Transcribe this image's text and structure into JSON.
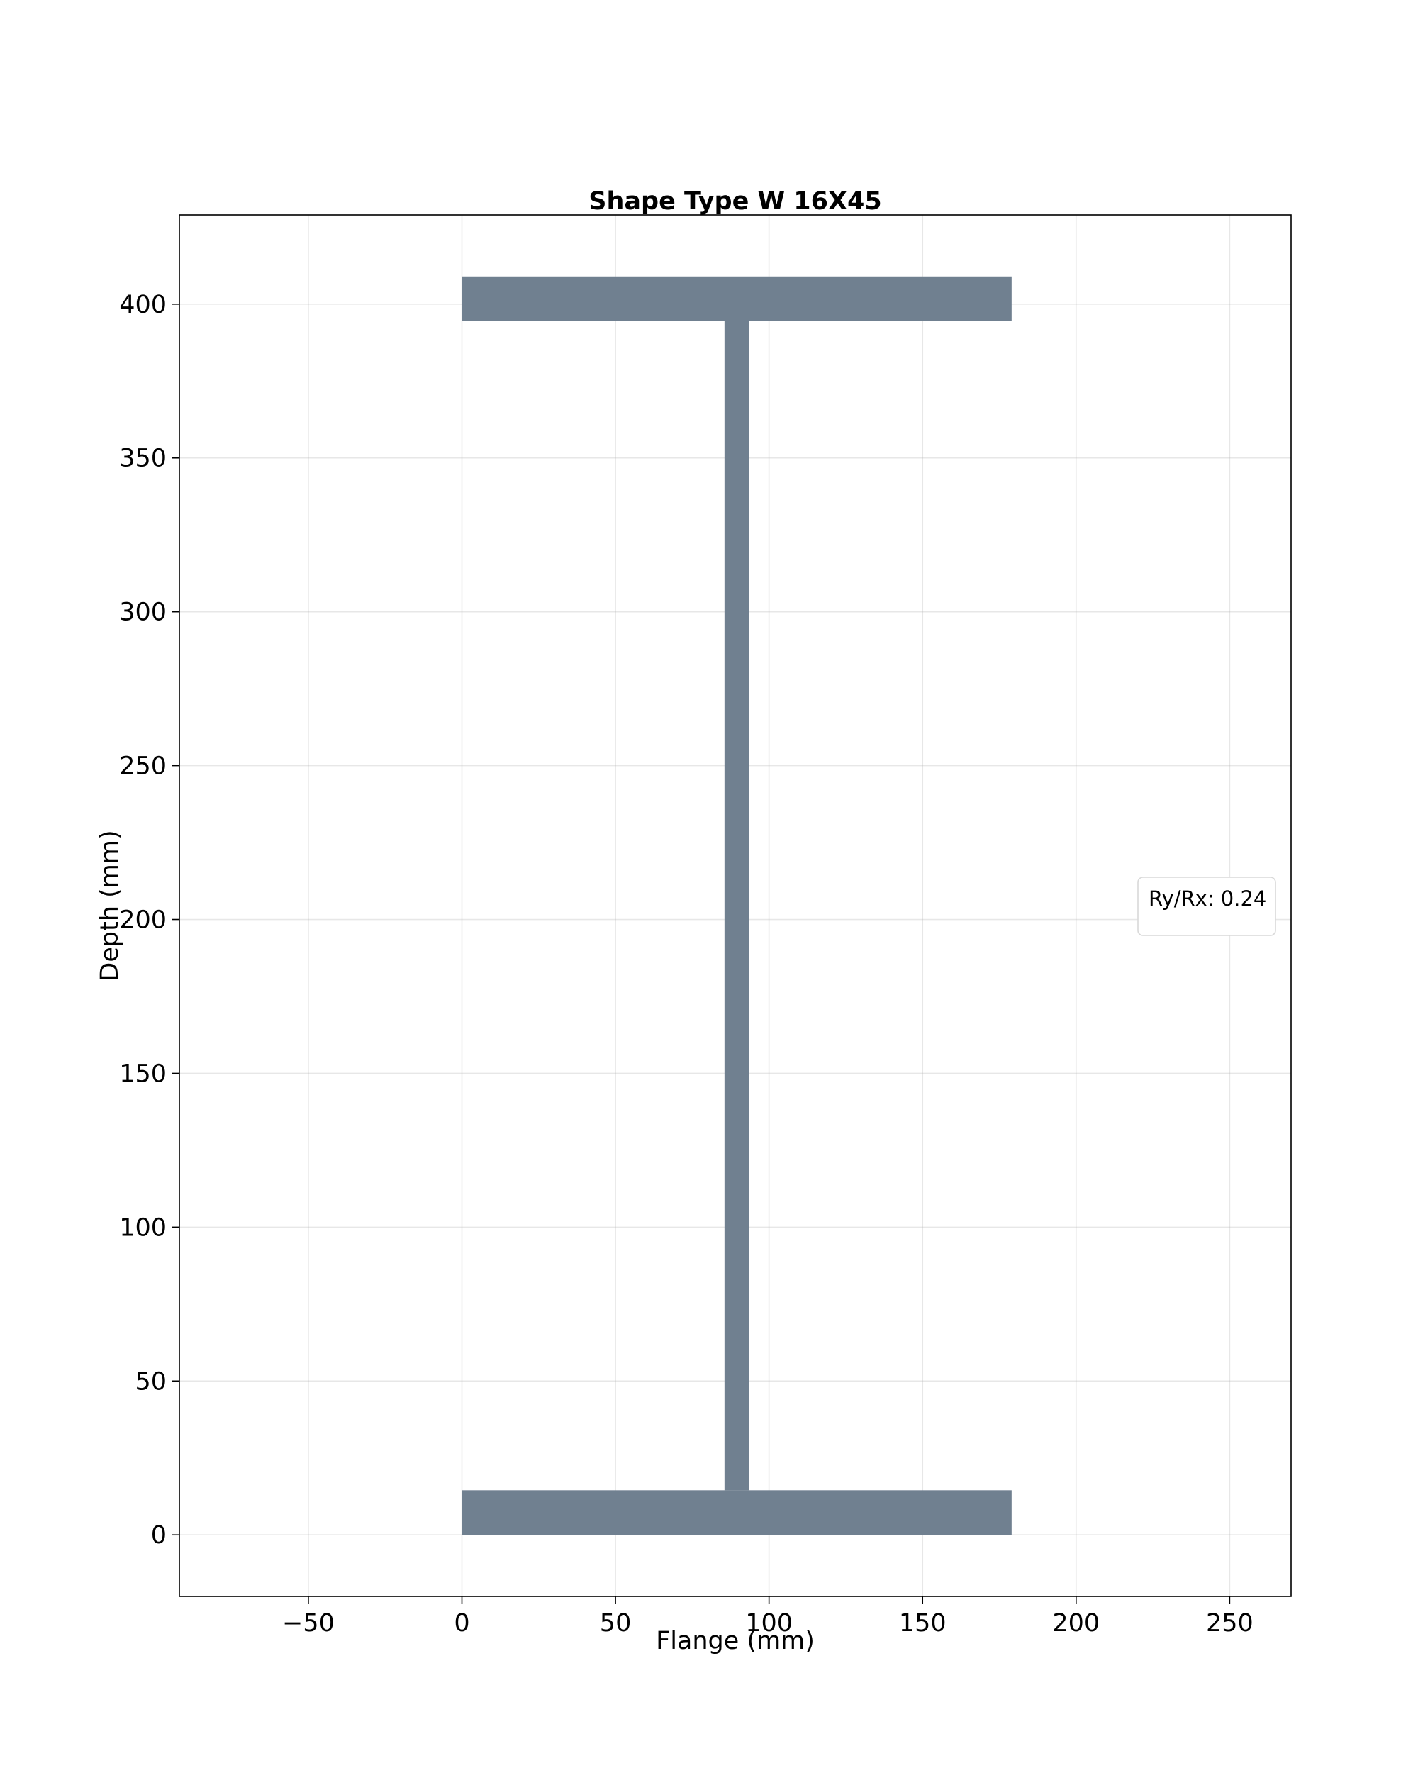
{
  "chart_data": {
    "type": "shape",
    "title": "Shape Type W 16X45",
    "xlabel": "Flange (mm)",
    "ylabel": "Depth (mm)",
    "xlim": [
      -92,
      270
    ],
    "ylim": [
      -20,
      429
    ],
    "x_ticks": [
      -50,
      0,
      50,
      100,
      150,
      200,
      250
    ],
    "x_tick_labels": [
      "−50",
      "0",
      "50",
      "100",
      "150",
      "200",
      "250"
    ],
    "y_ticks": [
      0,
      50,
      100,
      150,
      200,
      250,
      300,
      350,
      400
    ],
    "y_tick_labels": [
      "0",
      "50",
      "100",
      "150",
      "200",
      "250",
      "300",
      "350",
      "400"
    ],
    "grid": true,
    "fill_color": "#708090",
    "shapes": [
      {
        "part": "bottom-flange",
        "x": [
          0,
          179
        ],
        "y": [
          0,
          14.5
        ]
      },
      {
        "part": "web",
        "x": [
          85.5,
          93.5
        ],
        "y": [
          14.5,
          394.5
        ]
      },
      {
        "part": "top-flange",
        "x": [
          0,
          179
        ],
        "y": [
          394.5,
          409
        ]
      }
    ],
    "legend": {
      "text": "Ry/Rx: 0.24",
      "placement": "center-right"
    }
  }
}
